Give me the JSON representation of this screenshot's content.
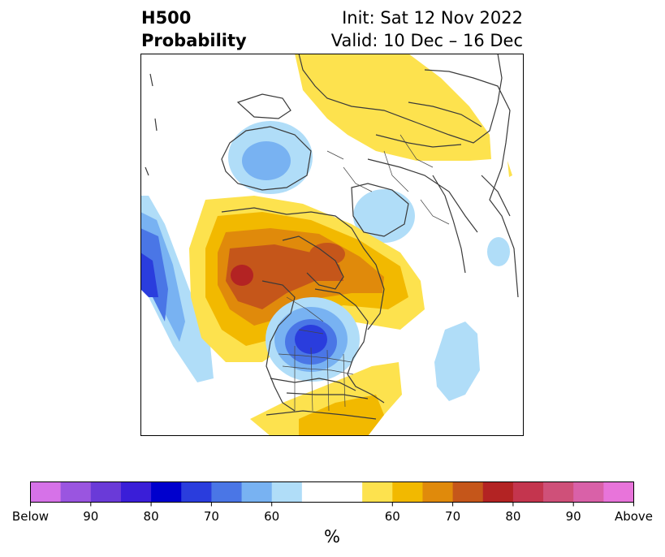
{
  "title": {
    "left_line1": "H500",
    "left_line2": "Probability",
    "right_line1": "Init: Sat 12 Nov 2022",
    "right_line2": "Valid: 10 Dec – 16 Dec"
  },
  "colorbar": {
    "unit": "%",
    "tick_labels": [
      "Below",
      "90",
      "80",
      "70",
      "60",
      "60",
      "70",
      "80",
      "90",
      "Above"
    ],
    "colors": [
      "#d672e8",
      "#9a55e0",
      "#6a3ad8",
      "#3a1ed8",
      "#0000cd",
      "#2a3ddd",
      "#4a76e6",
      "#78b2f2",
      "#b0ddf8",
      "#ffffff",
      "#ffffff",
      "#fde24e",
      "#f2b900",
      "#e08a0b",
      "#c5561a",
      "#b32323",
      "#c4354e",
      "#cf5079",
      "#d961a8",
      "#e874da"
    ]
  },
  "map": {
    "projection": "polar stereographic, North Pole",
    "features": [
      "continents",
      "country borders",
      "US state borders",
      "Canadian province borders"
    ]
  }
}
